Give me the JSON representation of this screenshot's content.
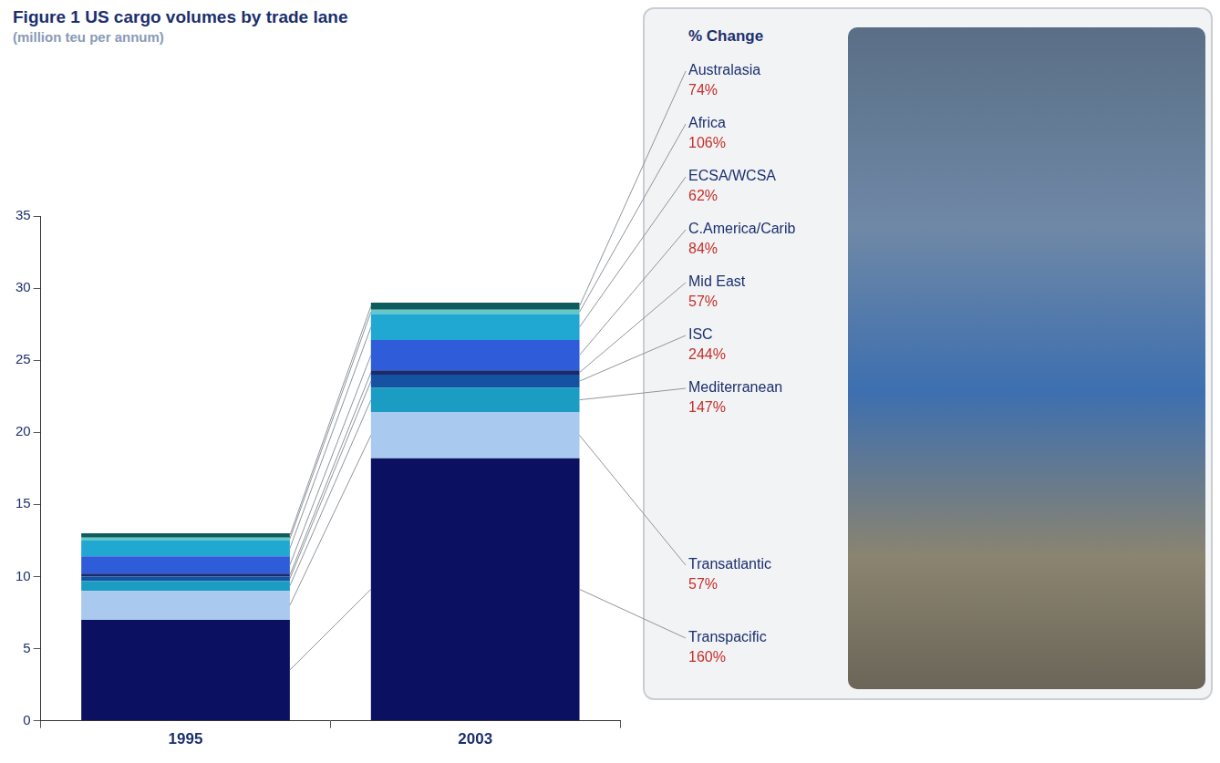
{
  "chart_data": {
    "type": "bar",
    "title": "Figure 1 US cargo volumes by trade lane",
    "subtitle": "(million teu per annum)",
    "annotation_title": "% Change",
    "categories": [
      "1995",
      "2003"
    ],
    "stacked": true,
    "grid": false,
    "ylim": [
      0,
      35
    ],
    "yticks": [
      0,
      5,
      10,
      15,
      20,
      25,
      30,
      35
    ],
    "series": [
      {
        "name": "Transpacific",
        "color": "#0b1160",
        "values": [
          7.0,
          18.2
        ],
        "change": 160,
        "change_label": "160%"
      },
      {
        "name": "Transatlantic",
        "color": "#a9c9ee",
        "values": [
          2.0,
          3.2
        ],
        "change": 57,
        "change_label": "57%"
      },
      {
        "name": "Mediterranean",
        "color": "#1b9cc2",
        "values": [
          0.7,
          1.7
        ],
        "change": 147,
        "change_label": "147%"
      },
      {
        "name": "ISC",
        "color": "#1652a2",
        "values": [
          0.3,
          0.9
        ],
        "change": 244,
        "change_label": "244%"
      },
      {
        "name": "Mid East",
        "color": "#1a2a6e",
        "values": [
          0.2,
          0.3
        ],
        "change": 57,
        "change_label": "57%"
      },
      {
        "name": "C.America/Carib",
        "color": "#2f5cd8",
        "values": [
          1.2,
          2.1
        ],
        "change": 84,
        "change_label": "84%"
      },
      {
        "name": "ECSA/WCSA",
        "color": "#20a8d2",
        "values": [
          1.1,
          1.8
        ],
        "change": 62,
        "change_label": "62%"
      },
      {
        "name": "Africa",
        "color": "#62c8c8",
        "values": [
          0.2,
          0.3
        ],
        "change": 106,
        "change_label": "106%"
      },
      {
        "name": "Australasia",
        "color": "#0f5c5e",
        "values": [
          0.3,
          0.5
        ],
        "change": 74,
        "change_label": "74%"
      }
    ]
  }
}
